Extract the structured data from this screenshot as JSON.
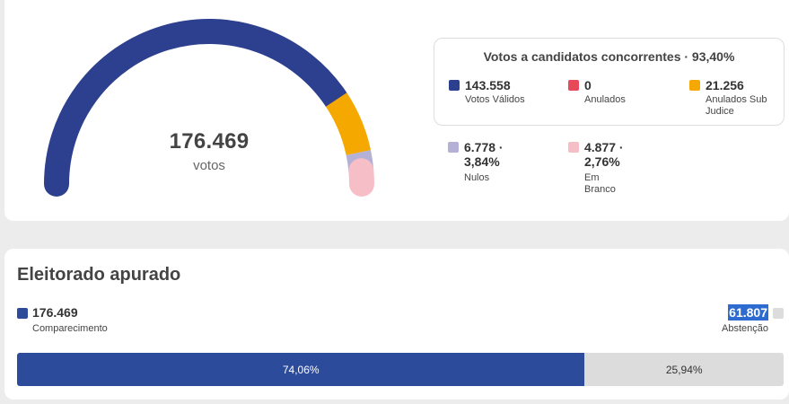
{
  "gauge": {
    "total": "176.469",
    "unit": "votos",
    "segments": [
      {
        "name": "votos-validos",
        "value": 143558,
        "color": "#2d3f8f"
      },
      {
        "name": "anulados",
        "value": 0,
        "color": "#e5495a"
      },
      {
        "name": "anulados-sub-judice",
        "value": 21256,
        "color": "#f5a800"
      },
      {
        "name": "nulos",
        "value": 6778,
        "color": "#b4b0d6"
      },
      {
        "name": "em-branco",
        "value": 4877,
        "color": "#f6bec6"
      }
    ]
  },
  "legend": {
    "title": "Votos a candidatos concorrentes · 93,40%",
    "items": [
      {
        "value": "143.558",
        "label": "Votos Válidos",
        "color": "#2d3f8f"
      },
      {
        "value": "0",
        "label": "Anulados",
        "color": "#e5495a"
      },
      {
        "value": "21.256",
        "label": "Anulados Sub Judice",
        "color": "#f5a800"
      },
      {
        "value": "6.778 · 3,84%",
        "label": "Nulos",
        "color": "#b4b0d6"
      },
      {
        "value": "4.877 · 2,76%",
        "label": "Em Branco",
        "color": "#f6bec6"
      }
    ]
  },
  "electorate": {
    "title": "Eleitorado apurado",
    "turnout_value": "176.469",
    "turnout_label": "Comparecimento",
    "abstention_value": "61.807",
    "abstention_label": "Abstenção",
    "turnout_fraction": 0.7406,
    "turnout_pct": "74,06%",
    "abstention_pct": "25,94%"
  }
}
